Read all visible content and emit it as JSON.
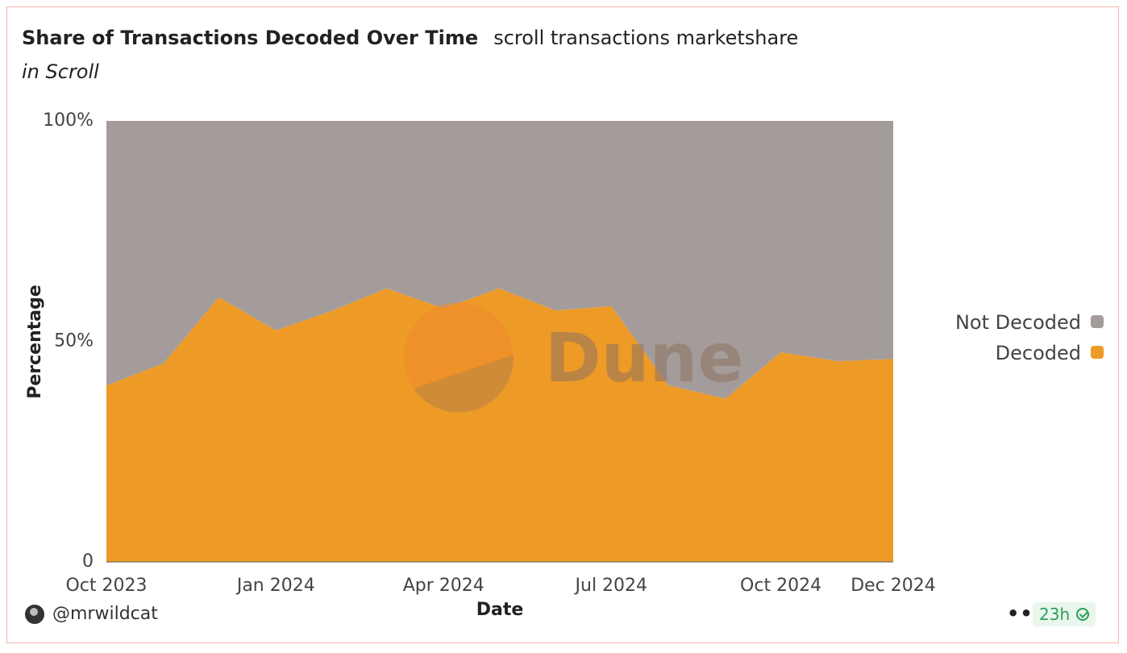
{
  "header": {
    "title": "Share of Transactions Decoded Over Time",
    "subtitle": "scroll transactions marketshare",
    "context": "in Scroll"
  },
  "footer": {
    "author": "@mrwildcat",
    "more_label": "•••",
    "refresh_badge": "23h"
  },
  "watermark": {
    "text": "Dune"
  },
  "colors": {
    "decoded": "#ee9a26",
    "not_decoded": "#a49c9b"
  },
  "chart_data": {
    "type": "area",
    "stacked": "percent",
    "x": [
      "2023-10-01",
      "2023-11-01",
      "2023-12-01",
      "2024-01-01",
      "2024-02-01",
      "2024-03-01",
      "2024-04-01",
      "2024-05-01",
      "2024-06-01",
      "2024-07-01",
      "2024-08-01",
      "2024-09-01",
      "2024-10-01",
      "2024-11-01",
      "2024-12-01"
    ],
    "series": [
      {
        "name": "Decoded",
        "color": "#ee9a26",
        "values": [
          40,
          45,
          60,
          52.5,
          57,
          62,
          57.5,
          62,
          57,
          58,
          40,
          37,
          47.5,
          45.5,
          46
        ]
      },
      {
        "name": "Not Decoded",
        "color": "#a49c9b",
        "values": [
          60,
          55,
          40,
          47.5,
          43,
          38,
          42.5,
          38,
          43,
          42,
          60,
          63,
          52.5,
          54.5,
          54
        ]
      }
    ],
    "legend_order": [
      "Not Decoded",
      "Decoded"
    ],
    "xlabel": "Date",
    "ylabel": "Percentage",
    "ylim": [
      0,
      100
    ],
    "y_ticks": [
      {
        "value": 0,
        "label": "0"
      },
      {
        "value": 50,
        "label": "50%"
      },
      {
        "value": 100,
        "label": "100%"
      }
    ],
    "x_ticks": [
      {
        "date": "2023-10-01",
        "label": "Oct 2023"
      },
      {
        "date": "2024-01-01",
        "label": "Jan 2024"
      },
      {
        "date": "2024-04-01",
        "label": "Apr 2024"
      },
      {
        "date": "2024-07-01",
        "label": "Jul 2024"
      },
      {
        "date": "2024-10-01",
        "label": "Oct 2024"
      },
      {
        "date": "2024-12-01",
        "label": "Dec 2024"
      }
    ],
    "grid": false,
    "legend_position": "right"
  }
}
